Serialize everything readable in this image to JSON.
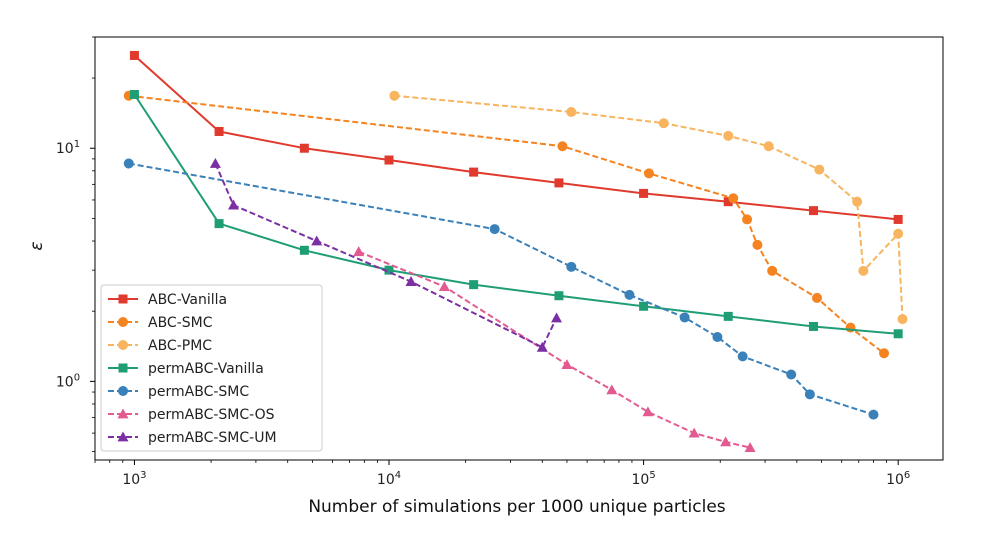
{
  "chart_data": {
    "type": "line",
    "title": "",
    "xlabel": "Number of simulations per 1000 unique particles",
    "ylabel": "ε",
    "xscale": "log",
    "yscale": "log",
    "xlim": [
      700,
      1500000
    ],
    "ylim": [
      0.46,
      30
    ],
    "xticks": [
      {
        "value": 1000,
        "base": "10",
        "exp": "3"
      },
      {
        "value": 10000,
        "base": "10",
        "exp": "4"
      },
      {
        "value": 100000,
        "base": "10",
        "exp": "5"
      },
      {
        "value": 1000000,
        "base": "10",
        "exp": "6"
      }
    ],
    "yticks": [
      {
        "value": 1,
        "base": "10",
        "exp": "0"
      },
      {
        "value": 10,
        "base": "10",
        "exp": "1"
      }
    ],
    "legend_position": "lower-left",
    "series": [
      {
        "name": "ABC-Vanilla",
        "color": "#e03a2e",
        "marker": "square",
        "dashed": false,
        "x": [
          1000,
          2150,
          4650,
          10000,
          21500,
          46500,
          100000,
          215000,
          465000,
          1000000
        ],
        "y": [
          25,
          11.8,
          10.0,
          8.9,
          7.9,
          7.1,
          6.4,
          5.9,
          5.4,
          4.95
        ]
      },
      {
        "name": "ABC-SMC",
        "color": "#f5831f",
        "marker": "circle",
        "dashed": true,
        "x": [
          950,
          48000,
          105000,
          225000,
          255000,
          280000,
          320000,
          480000,
          650000,
          880000
        ],
        "y": [
          16.8,
          10.2,
          7.8,
          6.1,
          4.95,
          3.85,
          2.98,
          2.28,
          1.7,
          1.32
        ]
      },
      {
        "name": "ABC-PMC",
        "color": "#f8b45e",
        "marker": "circle",
        "dashed": true,
        "x": [
          10500,
          52000,
          120000,
          215000,
          310000,
          490000,
          690000,
          730000,
          1000000,
          1040000
        ],
        "y": [
          16.8,
          14.3,
          12.8,
          11.3,
          10.2,
          8.1,
          5.9,
          2.98,
          4.3,
          1.85
        ]
      },
      {
        "name": "permABC-Vanilla",
        "color": "#1f9e76",
        "marker": "square",
        "dashed": false,
        "x": [
          1000,
          2150,
          4650,
          10000,
          21500,
          46500,
          100000,
          215000,
          465000,
          1000000
        ],
        "y": [
          17.0,
          4.75,
          3.65,
          3.0,
          2.6,
          2.33,
          2.1,
          1.9,
          1.72,
          1.6
        ]
      },
      {
        "name": "permABC-SMC",
        "color": "#3a80b9",
        "marker": "circle",
        "dashed": true,
        "x": [
          950,
          26000,
          52000,
          88000,
          145000,
          195000,
          245000,
          380000,
          450000,
          800000
        ],
        "y": [
          8.6,
          4.5,
          3.1,
          2.35,
          1.88,
          1.55,
          1.28,
          1.07,
          0.88,
          0.72
        ]
      },
      {
        "name": "permABC-SMC-OS",
        "color": "#e25a8f",
        "marker": "triangle",
        "dashed": true,
        "x": [
          7600,
          16500,
          50000,
          75000,
          104000,
          158000,
          210000,
          262000
        ],
        "y": [
          3.6,
          2.55,
          1.18,
          0.92,
          0.74,
          0.6,
          0.55,
          0.52
        ]
      },
      {
        "name": "permABC-SMC-UM",
        "color": "#7b2fa3",
        "marker": "triangle",
        "dashed": true,
        "x": [
          2080,
          2450,
          5200,
          12200,
          40000,
          45500
        ],
        "y": [
          8.6,
          5.7,
          4.0,
          2.68,
          1.4,
          1.87
        ]
      }
    ]
  }
}
